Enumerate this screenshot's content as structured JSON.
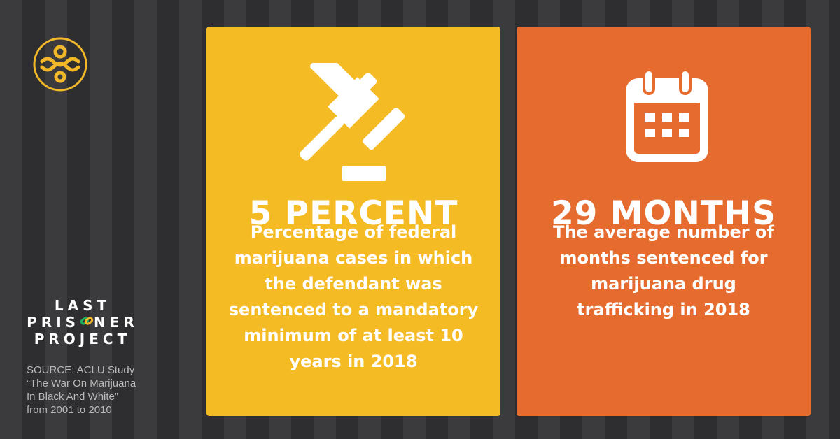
{
  "brand": {
    "line1": "LAST",
    "line2_left": "PRIS",
    "line2_right": "NER",
    "line3": "PROJECT"
  },
  "source": [
    "SOURCE: ACLU Study",
    "“The War On Marijuana",
    "In Black And White”",
    "from 2001 to 2010"
  ],
  "cards": [
    {
      "headline": "5 PERCENT",
      "lines": [
        "Percentage of federal",
        "marijuana cases in which",
        "the defendant was",
        "sentenced to a mandatory",
        "minimum of at least 10",
        "years in 2018"
      ]
    },
    {
      "headline": "29 MONTHS",
      "lines": [
        "The average number of",
        "months sentenced for",
        "marijuana drug",
        "trafficking in 2018"
      ]
    }
  ]
}
